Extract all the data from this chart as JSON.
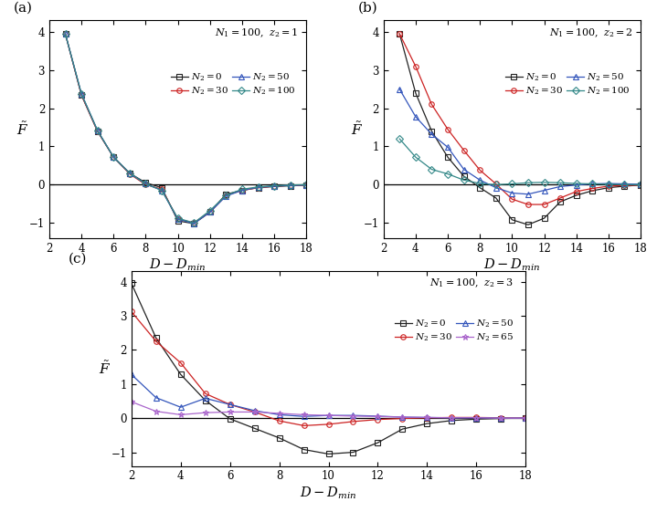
{
  "panel_a": {
    "title_text": "$N_1 = 100,\\ z_2 = 1$",
    "series": [
      {
        "label": "$N_2 = 0$",
        "color": "#222222",
        "marker": "s",
        "markersize": 4,
        "x": [
          3,
          4,
          5,
          6,
          7,
          8,
          9,
          10,
          11,
          12,
          13,
          14,
          15,
          16,
          17,
          18
        ],
        "y": [
          3.95,
          2.35,
          1.4,
          0.72,
          0.3,
          0.05,
          -0.08,
          -0.95,
          -1.02,
          -0.72,
          -0.25,
          -0.15,
          -0.08,
          -0.05,
          -0.03,
          -0.01
        ]
      },
      {
        "label": "$N_2 = 30$",
        "color": "#cc2222",
        "marker": "o",
        "markersize": 4,
        "x": [
          3,
          4,
          5,
          6,
          7,
          8,
          9,
          10,
          11,
          12,
          13,
          14,
          15,
          16,
          17,
          18
        ],
        "y": [
          3.95,
          2.35,
          1.4,
          0.72,
          0.28,
          0.0,
          -0.12,
          -0.9,
          -1.0,
          -0.72,
          -0.28,
          -0.15,
          -0.08,
          -0.04,
          -0.02,
          -0.01
        ]
      },
      {
        "label": "$N_2 = 50$",
        "color": "#3355bb",
        "marker": "^",
        "markersize": 4,
        "x": [
          3,
          4,
          5,
          6,
          7,
          8,
          9,
          10,
          11,
          12,
          13,
          14,
          15,
          16,
          17,
          18
        ],
        "y": [
          3.95,
          2.38,
          1.42,
          0.72,
          0.3,
          0.02,
          -0.15,
          -0.9,
          -1.02,
          -0.72,
          -0.3,
          -0.15,
          -0.07,
          -0.04,
          -0.02,
          -0.01
        ]
      },
      {
        "label": "$N_2 = 100$",
        "color": "#338888",
        "marker": "D",
        "markersize": 4,
        "x": [
          3,
          4,
          5,
          6,
          7,
          8,
          9,
          10,
          11,
          12,
          13,
          14,
          15,
          16,
          17,
          18
        ],
        "y": [
          3.95,
          2.38,
          1.42,
          0.72,
          0.3,
          0.02,
          -0.15,
          -0.88,
          -1.0,
          -0.68,
          -0.28,
          -0.12,
          -0.06,
          -0.03,
          -0.01,
          0.0
        ]
      }
    ]
  },
  "panel_b": {
    "title_text": "$N_1 = 100,\\ z_2 = 2$",
    "series": [
      {
        "label": "$N_2 = 0$",
        "color": "#222222",
        "marker": "s",
        "markersize": 4,
        "x": [
          3,
          4,
          5,
          6,
          7,
          8,
          9,
          10,
          11,
          12,
          13,
          14,
          15,
          16,
          17,
          18
        ],
        "y": [
          3.95,
          2.4,
          1.4,
          0.72,
          0.22,
          -0.08,
          -0.35,
          -0.92,
          -1.05,
          -0.88,
          -0.45,
          -0.28,
          -0.16,
          -0.08,
          -0.04,
          -0.01
        ]
      },
      {
        "label": "$N_2 = 30$",
        "color": "#cc2222",
        "marker": "o",
        "markersize": 4,
        "x": [
          3,
          4,
          5,
          6,
          7,
          8,
          9,
          10,
          11,
          12,
          13,
          14,
          15,
          16,
          17,
          18
        ],
        "y": [
          3.95,
          3.1,
          2.1,
          1.45,
          0.9,
          0.38,
          0.02,
          -0.38,
          -0.52,
          -0.52,
          -0.35,
          -0.18,
          -0.1,
          -0.04,
          -0.02,
          -0.01
        ]
      },
      {
        "label": "$N_2 = 50$",
        "color": "#3355bb",
        "marker": "^",
        "markersize": 4,
        "x": [
          3,
          4,
          5,
          6,
          7,
          8,
          9,
          10,
          11,
          12,
          13,
          14,
          15,
          16,
          17,
          18
        ],
        "y": [
          2.5,
          1.78,
          1.32,
          0.98,
          0.4,
          0.12,
          -0.08,
          -0.22,
          -0.25,
          -0.15,
          -0.05,
          -0.01,
          0.02,
          0.03,
          0.02,
          0.01
        ]
      },
      {
        "label": "$N_2 = 100$",
        "color": "#338888",
        "marker": "D",
        "markersize": 4,
        "x": [
          3,
          4,
          5,
          6,
          7,
          8,
          9,
          10,
          11,
          12,
          13,
          14,
          15,
          16,
          17,
          18
        ],
        "y": [
          1.2,
          0.72,
          0.4,
          0.28,
          0.12,
          0.03,
          0.0,
          0.02,
          0.05,
          0.06,
          0.05,
          0.03,
          0.02,
          0.01,
          0.0,
          0.0
        ]
      }
    ]
  },
  "panel_c": {
    "title_text": "$N_1 = 100,\\ z_2 = 3$",
    "series": [
      {
        "label": "$N_2 = 0$",
        "color": "#222222",
        "marker": "s",
        "markersize": 4,
        "x": [
          2,
          3,
          4,
          5,
          6,
          7,
          8,
          9,
          10,
          11,
          12,
          13,
          14,
          15,
          16,
          17,
          18
        ],
        "y": [
          3.95,
          2.35,
          1.28,
          0.52,
          -0.02,
          -0.3,
          -0.58,
          -0.92,
          -1.05,
          -1.0,
          -0.72,
          -0.32,
          -0.16,
          -0.07,
          -0.03,
          -0.01,
          0.0
        ]
      },
      {
        "label": "$N_2 = 30$",
        "color": "#cc2222",
        "marker": "o",
        "markersize": 4,
        "x": [
          2,
          3,
          4,
          5,
          6,
          7,
          8,
          9,
          10,
          11,
          12,
          13,
          14,
          15,
          16,
          17,
          18
        ],
        "y": [
          3.12,
          2.25,
          1.62,
          0.72,
          0.4,
          0.18,
          -0.08,
          -0.22,
          -0.18,
          -0.1,
          -0.04,
          -0.01,
          0.01,
          0.02,
          0.02,
          0.01,
          0.0
        ]
      },
      {
        "label": "$N_2 = 50$",
        "color": "#3355bb",
        "marker": "^",
        "markersize": 4,
        "x": [
          2,
          3,
          4,
          5,
          6,
          7,
          8,
          9,
          10,
          11,
          12,
          13,
          14,
          15,
          16,
          17,
          18
        ],
        "y": [
          1.28,
          0.6,
          0.32,
          0.58,
          0.4,
          0.22,
          0.1,
          0.05,
          0.08,
          0.08,
          0.06,
          0.03,
          0.02,
          0.01,
          0.01,
          0.0,
          0.0
        ]
      },
      {
        "label": "$N_2 = 65$",
        "color": "#aa66cc",
        "marker": "*",
        "markersize": 5,
        "x": [
          2,
          3,
          4,
          5,
          6,
          7,
          8,
          9,
          10,
          11,
          12,
          13,
          14,
          15,
          16,
          17,
          18
        ],
        "y": [
          0.48,
          0.2,
          0.1,
          0.16,
          0.18,
          0.18,
          0.14,
          0.1,
          0.08,
          0.06,
          0.05,
          0.03,
          0.02,
          0.01,
          0.01,
          0.0,
          0.0
        ]
      }
    ]
  },
  "xlim": [
    2,
    18
  ],
  "ylim": [
    -1.4,
    4.3
  ],
  "xticks": [
    2,
    4,
    6,
    8,
    10,
    12,
    14,
    16,
    18
  ],
  "yticks": [
    -1,
    0,
    1,
    2,
    3,
    4
  ],
  "xlabel": "$D-D_{min}$",
  "ylabel": "$\\tilde{F}$",
  "bg_color": "#ffffff"
}
